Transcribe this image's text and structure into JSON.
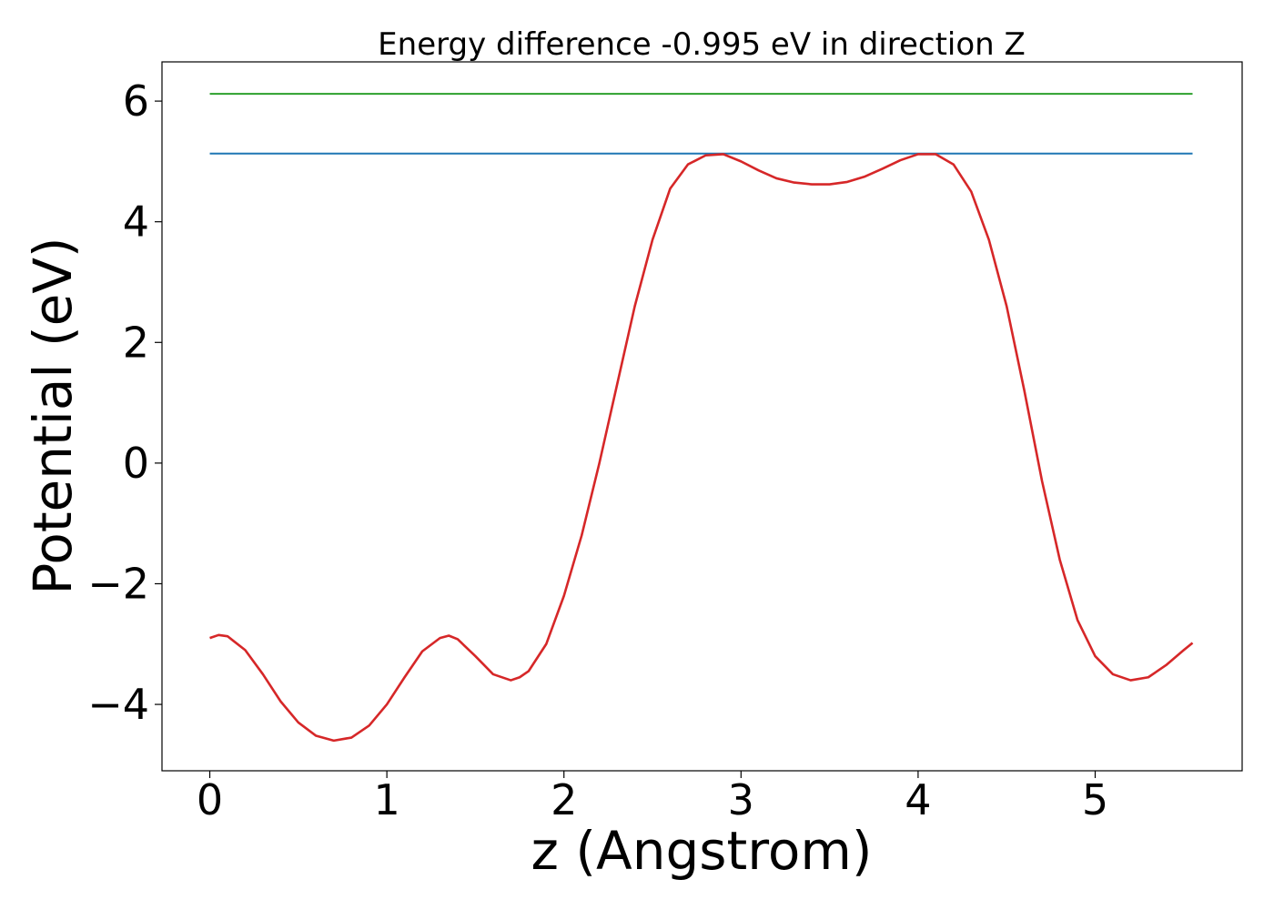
{
  "chart_data": {
    "type": "line",
    "title": "Energy difference -0.995 eV in direction Z",
    "xlabel": "z (Angstrom)",
    "ylabel": "Potential (eV)",
    "xlim": [
      -0.27,
      5.83
    ],
    "ylim": [
      -5.1,
      6.65
    ],
    "xticks": [
      0,
      1,
      2,
      3,
      4,
      5
    ],
    "yticks": [
      -4,
      -2,
      0,
      2,
      4,
      6
    ],
    "xtick_labels": [
      "0",
      "1",
      "2",
      "3",
      "4",
      "5"
    ],
    "ytick_labels": [
      "−4",
      "−2",
      "0",
      "2",
      "4",
      "6"
    ],
    "grid": false,
    "legend": "none",
    "series": [
      {
        "color": "#2ca02c",
        "x": [
          0,
          5.55
        ],
        "y": [
          6.12,
          6.12
        ]
      },
      {
        "color": "#1f77b4",
        "x": [
          0,
          5.55
        ],
        "y": [
          5.13,
          5.13
        ]
      },
      {
        "color": "#d62728",
        "x": [
          0,
          0.05,
          0.1,
          0.2,
          0.3,
          0.4,
          0.5,
          0.6,
          0.7,
          0.8,
          0.9,
          1.0,
          1.1,
          1.2,
          1.3,
          1.35,
          1.4,
          1.5,
          1.6,
          1.7,
          1.75,
          1.8,
          1.9,
          2.0,
          2.1,
          2.2,
          2.3,
          2.4,
          2.5,
          2.6,
          2.7,
          2.8,
          2.9,
          3.0,
          3.1,
          3.2,
          3.3,
          3.4,
          3.5,
          3.6,
          3.7,
          3.8,
          3.9,
          4.0,
          4.1,
          4.2,
          4.3,
          4.4,
          4.5,
          4.6,
          4.7,
          4.8,
          4.9,
          5.0,
          5.1,
          5.2,
          5.3,
          5.4,
          5.5,
          5.55
        ],
        "y": [
          -2.9,
          -2.85,
          -2.87,
          -3.1,
          -3.5,
          -3.95,
          -4.3,
          -4.52,
          -4.6,
          -4.55,
          -4.35,
          -4.0,
          -3.55,
          -3.12,
          -2.9,
          -2.86,
          -2.92,
          -3.2,
          -3.5,
          -3.6,
          -3.55,
          -3.45,
          -3.0,
          -2.2,
          -1.2,
          0.0,
          1.3,
          2.6,
          3.7,
          4.55,
          4.95,
          5.1,
          5.12,
          5.0,
          4.85,
          4.72,
          4.65,
          4.62,
          4.62,
          4.66,
          4.75,
          4.88,
          5.02,
          5.12,
          5.12,
          4.95,
          4.5,
          3.7,
          2.6,
          1.2,
          -0.3,
          -1.6,
          -2.6,
          -3.2,
          -3.5,
          -3.6,
          -3.55,
          -3.35,
          -3.1,
          -2.98
        ]
      }
    ]
  }
}
